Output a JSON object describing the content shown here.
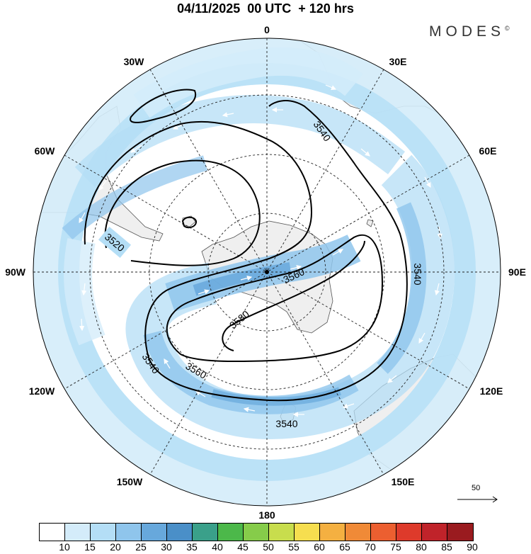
{
  "title": "04/11/2025  00 UTC  + 120 hrs",
  "brand": {
    "name": "MODES",
    "mark": "©"
  },
  "longitude_labels": {
    "north": "0",
    "south": "180",
    "east": "90E",
    "west": "90W",
    "e30": "30E",
    "e60": "60E",
    "e120": "120E",
    "e150": "150E",
    "w30": "30W",
    "w60": "60W",
    "w120": "120W",
    "w150": "150W"
  },
  "contour_labels": {
    "l3520": "3520",
    "l3540_top": "3540",
    "l3540_right": "3540",
    "l3540_left": "3540",
    "l3540_bottom": "3540",
    "l3560_center": "3560",
    "l3560_lower": "3560",
    "l3580": "3580"
  },
  "reference_vector": {
    "label": "50"
  },
  "colorbar": {
    "labels": [
      "10",
      "15",
      "20",
      "25",
      "30",
      "35",
      "40",
      "45",
      "50",
      "55",
      "60",
      "65",
      "70",
      "75",
      "80",
      "85",
      "90"
    ],
    "colors": [
      "#ffffff",
      "#d4ecfa",
      "#b4def6",
      "#8fc5ec",
      "#67a8dc",
      "#4a8fc8",
      "#3aa08a",
      "#4cb84a",
      "#86cc4a",
      "#c8dd4d",
      "#f6de4f",
      "#f4b041",
      "#f08a37",
      "#ec5f30",
      "#de3a2b",
      "#c0232a",
      "#9a1b1f"
    ]
  },
  "colors": {
    "land": "#efefef",
    "coast": "#555555",
    "wind_light": "#d4ecfa",
    "wind_mid": "#b4def6",
    "wind_strong": "#8fc5ec",
    "wind_core": "#67a8dc"
  }
}
